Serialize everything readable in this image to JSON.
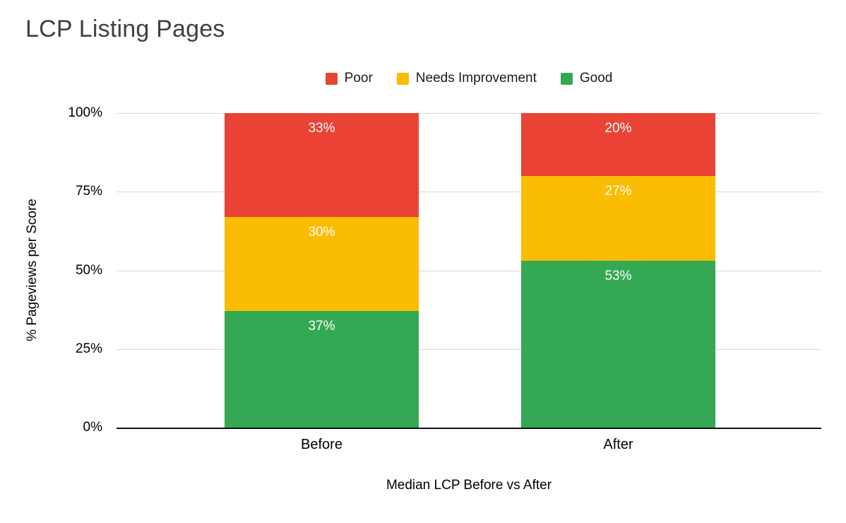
{
  "chart_data": {
    "type": "stacked-bar",
    "title": "LCP Listing Pages",
    "xlabel": "Median LCP Before vs After",
    "ylabel": "% Pageviews per Score",
    "categories": [
      "Before",
      "After"
    ],
    "series": [
      {
        "name": "Poor",
        "color": "#ea4335",
        "values": [
          33,
          20
        ]
      },
      {
        "name": "Needs Improvement",
        "color": "#fbbc04",
        "values": [
          30,
          27
        ]
      },
      {
        "name": "Good",
        "color": "#34a853",
        "values": [
          37,
          53
        ]
      }
    ],
    "y_ticks": [
      {
        "value": 100,
        "label": "100%"
      },
      {
        "value": 75,
        "label": "75%"
      },
      {
        "value": 50,
        "label": "50%"
      },
      {
        "value": 25,
        "label": "25%"
      },
      {
        "value": 0,
        "label": "0%"
      }
    ],
    "ylim": [
      0,
      100
    ],
    "grid": true,
    "legend_position": "top",
    "value_labels_inside": true
  }
}
